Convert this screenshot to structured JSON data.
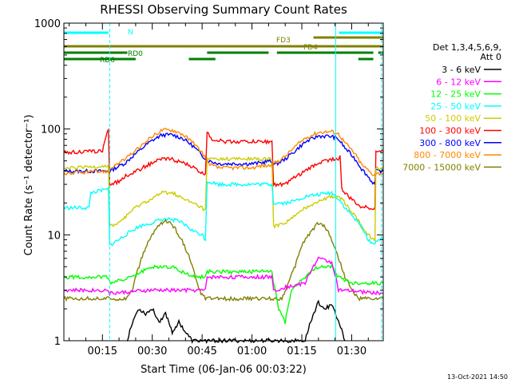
{
  "chart_data": {
    "type": "line",
    "title": "RHESSI Observing Summary Count Rates",
    "xlabel": "Start Time (06-Jan-06 00:03:22)",
    "ylabel": "Count Rate (s⁻¹ detector⁻¹)",
    "yscale": "log",
    "ylim": [
      1,
      1000
    ],
    "xlim_minutes": [
      3.4,
      99.5
    ],
    "yticks": [
      "1",
      "10",
      "100",
      "1000"
    ],
    "xticks": [
      {
        "minute": 15,
        "label": "00:15"
      },
      {
        "minute": 30,
        "label": "00:30"
      },
      {
        "minute": 45,
        "label": "00:45"
      },
      {
        "minute": 60,
        "label": "01:00"
      },
      {
        "minute": 75,
        "label": "01:15"
      },
      {
        "minute": 90,
        "label": "01:30"
      }
    ],
    "legend": {
      "position": "right",
      "header": [
        "Det 1,3,4,5,6,9,",
        "Att 0"
      ],
      "entries": [
        {
          "label": "3 - 6 keV",
          "color": "#000000"
        },
        {
          "label": "6 - 12 keV",
          "color": "#ff00ff"
        },
        {
          "label": "12 - 25 keV",
          "color": "#00ff00"
        },
        {
          "label": "25 - 50 keV",
          "color": "#00ffff"
        },
        {
          "label": "50 - 100 keV",
          "color": "#cccc00"
        },
        {
          "label": "100 - 300 keV",
          "color": "#ff0000"
        },
        {
          "label": "300 - 800 keV",
          "color": "#0000ff"
        },
        {
          "label": "800 - 7000 keV",
          "color": "#ff8800"
        },
        {
          "label": "7000 - 15000 keV",
          "color": "#808000"
        }
      ]
    },
    "flags": [
      {
        "label": "N",
        "color": "#00ffff",
        "row": 1,
        "segments": [
          [
            3.4,
            16.8
          ],
          [
            86.2,
            99.5
          ]
        ]
      },
      {
        "label": "FD3",
        "color": "#808000",
        "row": 2,
        "segments": [
          [
            78.5,
            99.5
          ]
        ]
      },
      {
        "label": "FD4",
        "color": "#808000",
        "row": 3,
        "segments": [
          [
            3.4,
            99.5
          ]
        ]
      },
      {
        "label": "RD0",
        "color": "#008000",
        "row": 4,
        "segments": [
          [
            3.4,
            22.5
          ],
          [
            46.5,
            65
          ],
          [
            67.5,
            96.5
          ],
          [
            98,
            99.5
          ]
        ]
      },
      {
        "label": "RD6",
        "color": "#008000",
        "row": 5,
        "segments": [
          [
            3.4,
            25
          ],
          [
            41,
            49
          ],
          [
            92,
            96.5
          ]
        ]
      }
    ],
    "vlines": [
      {
        "minute": 17.2,
        "color": "#00ffff",
        "style": "dashed"
      },
      {
        "minute": 85.2,
        "color": "#00ffff",
        "style": "solid"
      },
      {
        "minute": 99.0,
        "color": "#00ffff",
        "style": "dashed"
      }
    ],
    "series": [
      {
        "name": "300 - 800 keV",
        "color": "#0000ff",
        "points": [
          [
            3.4,
            40
          ],
          [
            16.8,
            40
          ],
          [
            17.2,
            40
          ],
          [
            22,
            48
          ],
          [
            26,
            62
          ],
          [
            30,
            78
          ],
          [
            33,
            88
          ],
          [
            36,
            88
          ],
          [
            39,
            82
          ],
          [
            42,
            70
          ],
          [
            45,
            56
          ],
          [
            47,
            50
          ],
          [
            50,
            47
          ],
          [
            55,
            47
          ],
          [
            60,
            47
          ],
          [
            63,
            48
          ],
          [
            65,
            50
          ],
          [
            67,
            46
          ],
          [
            70,
            52
          ],
          [
            73,
            62
          ],
          [
            76,
            75
          ],
          [
            80,
            86
          ],
          [
            84,
            85
          ],
          [
            86,
            80
          ],
          [
            88,
            66
          ],
          [
            91,
            52
          ],
          [
            93,
            42
          ],
          [
            96,
            32
          ],
          [
            97,
            30
          ],
          [
            97.3,
            40
          ],
          [
            99.5,
            40
          ]
        ]
      },
      {
        "name": "800 - 7000 keV",
        "color": "#ff8800",
        "points": [
          [
            3.4,
            38
          ],
          [
            16.8,
            40
          ],
          [
            17.2,
            42
          ],
          [
            22,
            52
          ],
          [
            26,
            66
          ],
          [
            30,
            85
          ],
          [
            33,
            98
          ],
          [
            36,
            98
          ],
          [
            39,
            90
          ],
          [
            42,
            75
          ],
          [
            45,
            60
          ],
          [
            47,
            46
          ],
          [
            50,
            43
          ],
          [
            55,
            43
          ],
          [
            60,
            43
          ],
          [
            63,
            45
          ],
          [
            65,
            45
          ],
          [
            67,
            48
          ],
          [
            70,
            55
          ],
          [
            73,
            68
          ],
          [
            76,
            82
          ],
          [
            80,
            93
          ],
          [
            84,
            95
          ],
          [
            86,
            90
          ],
          [
            88,
            74
          ],
          [
            91,
            58
          ],
          [
            93,
            46
          ],
          [
            96,
            38
          ],
          [
            97,
            37
          ],
          [
            97.3,
            38
          ],
          [
            99.5,
            38
          ]
        ]
      },
      {
        "name": "100 - 300 keV",
        "color": "#ff0000",
        "points": [
          [
            3.4,
            60
          ],
          [
            15,
            62
          ],
          [
            16.8,
            98
          ],
          [
            17.2,
            30
          ],
          [
            20,
            32
          ],
          [
            22,
            36
          ],
          [
            26,
            41
          ],
          [
            30,
            48
          ],
          [
            33,
            52
          ],
          [
            36,
            52
          ],
          [
            39,
            48
          ],
          [
            42,
            44
          ],
          [
            45,
            38
          ],
          [
            46,
            38
          ],
          [
            46.5,
            95
          ],
          [
            48,
            80
          ],
          [
            52,
            76
          ],
          [
            56,
            76
          ],
          [
            60,
            76
          ],
          [
            64,
            76
          ],
          [
            66,
            76
          ],
          [
            66.5,
            30
          ],
          [
            70,
            30
          ],
          [
            73,
            35
          ],
          [
            76,
            40
          ],
          [
            80,
            48
          ],
          [
            84,
            52
          ],
          [
            86,
            52
          ],
          [
            86.5,
            55
          ],
          [
            87,
            27
          ],
          [
            89,
            23
          ],
          [
            92,
            19
          ],
          [
            95,
            18
          ],
          [
            97,
            18
          ],
          [
            97.3,
            62
          ],
          [
            99.5,
            62
          ]
        ]
      },
      {
        "name": "50 - 100 keV",
        "color": "#cccc00",
        "points": [
          [
            3.4,
            42
          ],
          [
            16.8,
            45
          ],
          [
            17.2,
            12
          ],
          [
            20,
            13
          ],
          [
            22,
            15
          ],
          [
            26,
            19
          ],
          [
            30,
            22
          ],
          [
            33,
            25
          ],
          [
            36,
            25
          ],
          [
            39,
            22
          ],
          [
            42,
            20
          ],
          [
            45,
            18
          ],
          [
            46,
            17
          ],
          [
            46.5,
            52
          ],
          [
            50,
            52
          ],
          [
            55,
            52
          ],
          [
            60,
            52
          ],
          [
            64,
            52
          ],
          [
            66,
            52
          ],
          [
            66.5,
            12
          ],
          [
            70,
            13
          ],
          [
            73,
            15
          ],
          [
            76,
            18
          ],
          [
            80,
            21
          ],
          [
            84,
            23
          ],
          [
            86,
            23
          ],
          [
            88,
            20
          ],
          [
            91,
            15
          ],
          [
            93,
            12
          ],
          [
            95,
            10
          ],
          [
            97,
            9
          ],
          [
            97.3,
            43
          ],
          [
            99.5,
            43
          ]
        ]
      },
      {
        "name": "25 - 50 keV",
        "color": "#00ffff",
        "points": [
          [
            3.4,
            18
          ],
          [
            11,
            18
          ],
          [
            11.5,
            25
          ],
          [
            16.8,
            27
          ],
          [
            17.2,
            8
          ],
          [
            20,
            9
          ],
          [
            22,
            10
          ],
          [
            26,
            12
          ],
          [
            30,
            13
          ],
          [
            33,
            14
          ],
          [
            36,
            14
          ],
          [
            39,
            13
          ],
          [
            42,
            11
          ],
          [
            45,
            10
          ],
          [
            46,
            9
          ],
          [
            46.5,
            32
          ],
          [
            50,
            30
          ],
          [
            55,
            30
          ],
          [
            60,
            30
          ],
          [
            64,
            30
          ],
          [
            66,
            30
          ],
          [
            66.5,
            20
          ],
          [
            70,
            20
          ],
          [
            73,
            21
          ],
          [
            76,
            23
          ],
          [
            80,
            24
          ],
          [
            84,
            25
          ],
          [
            86,
            22
          ],
          [
            88,
            18
          ],
          [
            91,
            14
          ],
          [
            93,
            12
          ],
          [
            95,
            9
          ],
          [
            97,
            8
          ],
          [
            97.3,
            9
          ],
          [
            99.5,
            9
          ]
        ]
      },
      {
        "name": "7000 - 15000 keV",
        "color": "#808000",
        "points": [
          [
            3.4,
            2.5
          ],
          [
            22,
            2.5
          ],
          [
            24,
            3
          ],
          [
            26,
            5
          ],
          [
            28,
            7.5
          ],
          [
            30,
            10
          ],
          [
            32,
            12.5
          ],
          [
            34,
            13.5
          ],
          [
            36,
            12.5
          ],
          [
            38,
            10
          ],
          [
            40,
            7.5
          ],
          [
            42,
            5
          ],
          [
            44,
            3
          ],
          [
            46,
            2.5
          ],
          [
            66,
            2.5
          ],
          [
            69,
            2.5
          ],
          [
            71,
            3.5
          ],
          [
            73,
            5
          ],
          [
            75,
            8
          ],
          [
            78,
            11
          ],
          [
            80,
            13
          ],
          [
            82,
            12
          ],
          [
            84,
            9
          ],
          [
            86,
            6
          ],
          [
            88,
            4
          ],
          [
            90,
            3
          ],
          [
            92,
            2.5
          ],
          [
            99.5,
            2.5
          ]
        ]
      },
      {
        "name": "12 - 25 keV",
        "color": "#00ff00",
        "points": [
          [
            3.4,
            4
          ],
          [
            16.8,
            4
          ],
          [
            17.2,
            3.5
          ],
          [
            24,
            4
          ],
          [
            30,
            5
          ],
          [
            36,
            5
          ],
          [
            42,
            4
          ],
          [
            46,
            4
          ],
          [
            46.5,
            4.5
          ],
          [
            56,
            4.5
          ],
          [
            66,
            4.5
          ],
          [
            66.5,
            3.5
          ],
          [
            68,
            2
          ],
          [
            70,
            1.5
          ],
          [
            72,
            3
          ],
          [
            76,
            4
          ],
          [
            80,
            5
          ],
          [
            84,
            5
          ],
          [
            86,
            4
          ],
          [
            90,
            3.5
          ],
          [
            96,
            3.5
          ],
          [
            99.5,
            3.5
          ]
        ]
      },
      {
        "name": "6 - 12 keV",
        "color": "#ff00ff",
        "points": [
          [
            3.4,
            3
          ],
          [
            16.8,
            3
          ],
          [
            17.2,
            2.8
          ],
          [
            30,
            3
          ],
          [
            46,
            3
          ],
          [
            46.5,
            4
          ],
          [
            66,
            4
          ],
          [
            66.5,
            3
          ],
          [
            76,
            3.5
          ],
          [
            80,
            6
          ],
          [
            84,
            5.5
          ],
          [
            86,
            3
          ],
          [
            99.5,
            2.8
          ]
        ]
      },
      {
        "name": "3 - 6 keV",
        "color": "#000000",
        "points": [
          [
            22.5,
            1
          ],
          [
            24,
            1.5
          ],
          [
            26,
            2
          ],
          [
            28,
            1.8
          ],
          [
            30,
            2
          ],
          [
            32,
            1.5
          ],
          [
            34,
            1.8
          ],
          [
            36,
            1.2
          ],
          [
            38,
            1.5
          ],
          [
            40,
            1.2
          ],
          [
            42,
            1
          ],
          [
            76,
            1
          ],
          [
            78,
            1.6
          ],
          [
            80,
            2.3
          ],
          [
            82,
            2
          ],
          [
            84,
            2.2
          ],
          [
            86,
            1.5
          ],
          [
            88,
            1
          ]
        ]
      }
    ]
  },
  "footer": {
    "date_stamp": "13-Oct-2021 14:50"
  }
}
